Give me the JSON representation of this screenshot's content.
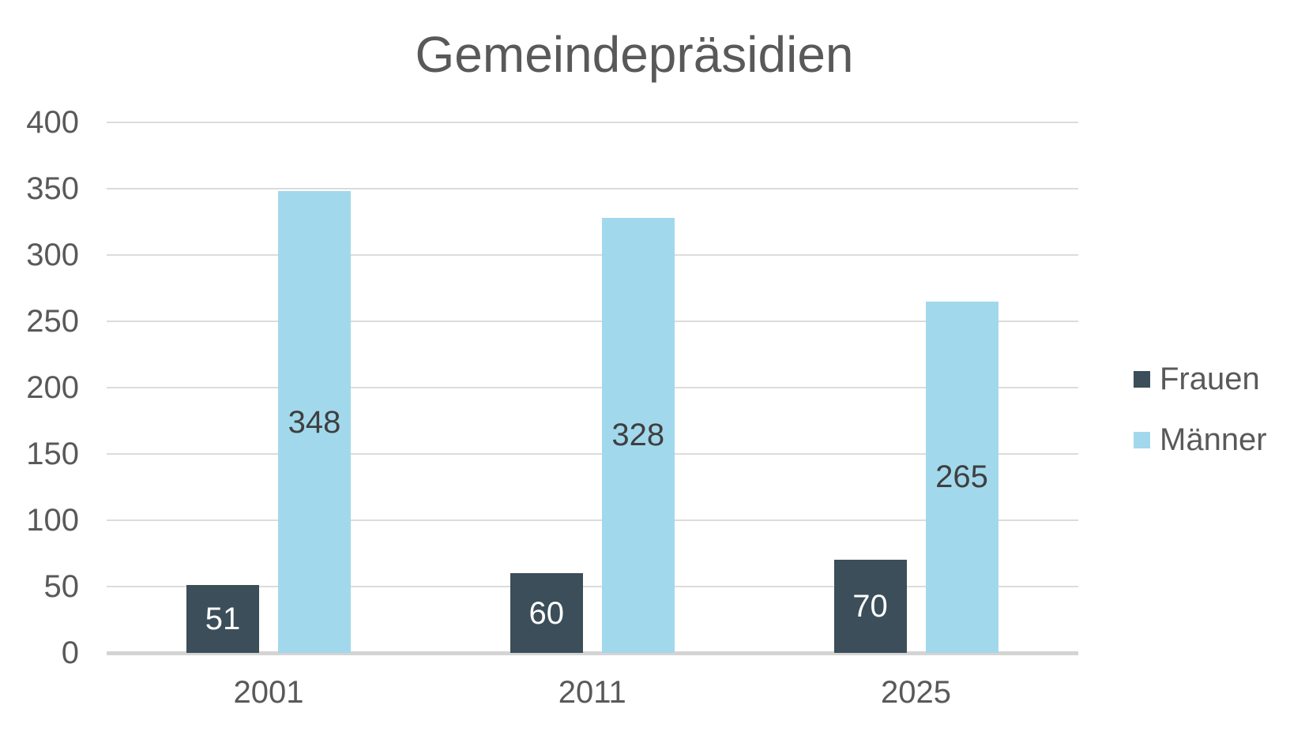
{
  "chart_data": {
    "type": "bar",
    "title": "Gemeindepräsidien",
    "categories": [
      "2001",
      "2011",
      "2025"
    ],
    "series": [
      {
        "name": "Frauen",
        "color": "#3b4e5a",
        "label_color": "#ffffff",
        "values": [
          51,
          60,
          70
        ]
      },
      {
        "name": "Männer",
        "color": "#a2d8ec",
        "label_color": "#3f3f3f",
        "values": [
          348,
          328,
          265
        ]
      }
    ],
    "ylim": [
      0,
      400
    ],
    "ytick_step": 50,
    "grid": true,
    "legend_position": "right",
    "data_labels": "center",
    "colors": {
      "text": "#595959",
      "gridline": "#dcdcdc",
      "axis_line": "#d4d4d4",
      "background": "#ffffff"
    }
  }
}
